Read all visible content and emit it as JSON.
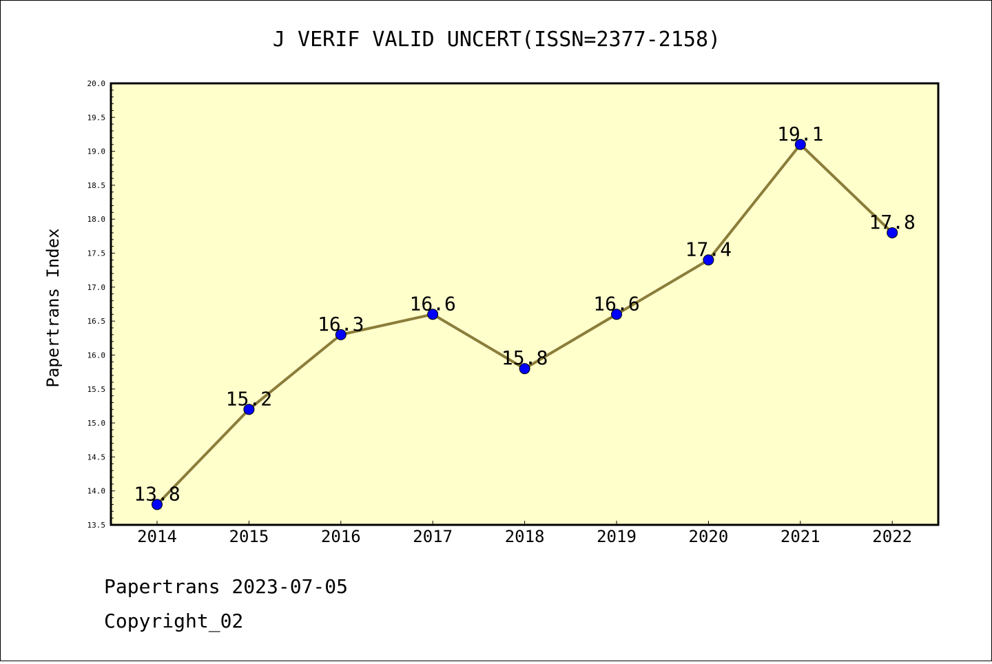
{
  "footer": {
    "line1": "Papertrans 2023-07-05",
    "line2": "Copyright_02"
  },
  "colors": {
    "plot_background": "#ffffcc",
    "line": "#8b7d3a",
    "marker": "#0000ff"
  },
  "chart_data": {
    "type": "line",
    "title": "J VERIF VALID UNCERT(ISSN=2377-2158)",
    "xlabel": "",
    "ylabel": "Papertrans Index",
    "categories": [
      "2014",
      "2015",
      "2016",
      "2017",
      "2018",
      "2019",
      "2020",
      "2021",
      "2022"
    ],
    "values": [
      13.8,
      15.2,
      16.3,
      16.6,
      15.8,
      16.6,
      17.4,
      19.1,
      17.8
    ],
    "data_labels": [
      "13.8",
      "15.2",
      "16.3",
      "16.6",
      "15.8",
      "16.6",
      "17.4",
      "19.1",
      "17.8"
    ],
    "ylim": [
      13.5,
      20.0
    ],
    "yticks": [
      "13.5",
      "14.0",
      "14.5",
      "15.0",
      "15.5",
      "16.0",
      "16.5",
      "17.0",
      "17.5",
      "18.0",
      "18.5",
      "19.0",
      "19.5",
      "20.0"
    ],
    "grid": false,
    "legend": "none"
  }
}
